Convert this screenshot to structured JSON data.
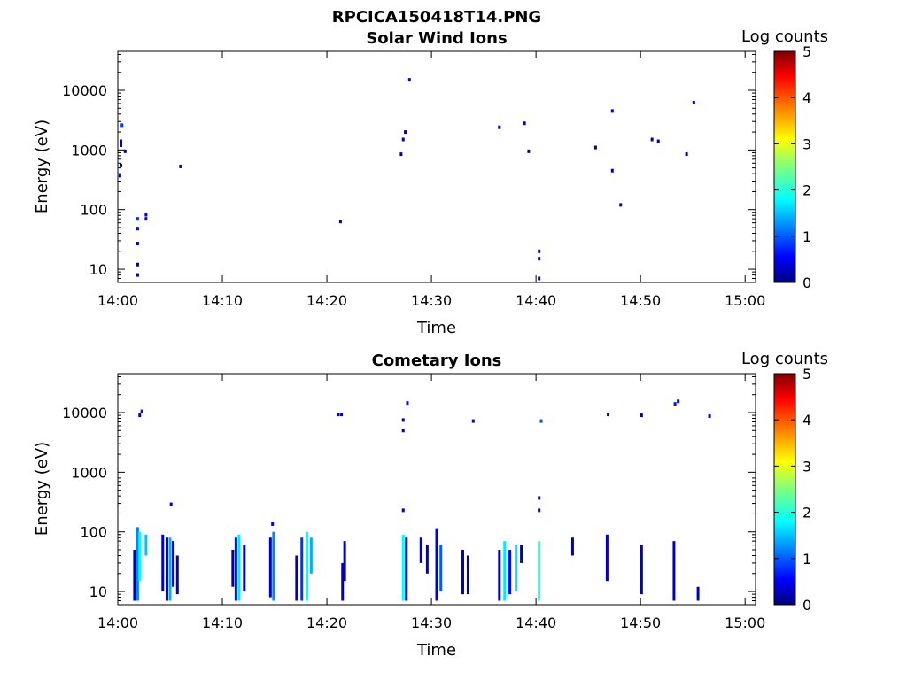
{
  "figure": {
    "title": "RPCICA150418T14.PNG"
  },
  "chart_data": [
    {
      "type": "heatmap",
      "title": "Solar Wind Ions",
      "xlabel": "Time",
      "ylabel": "Energy (eV)",
      "xticks": [
        "14:00",
        "14:10",
        "14:20",
        "14:30",
        "14:40",
        "14:50",
        "15:00"
      ],
      "xlim": [
        "14:00",
        "15:01"
      ],
      "yscale": "log",
      "ylim": [
        6,
        45000
      ],
      "yticks": [
        "10",
        "100",
        "1000",
        "10000"
      ],
      "colorbar": {
        "label": "Log counts",
        "min": 0,
        "max": 5,
        "ticks": [
          "0",
          "1",
          "2",
          "3",
          "4",
          "5"
        ],
        "colormap": "jet"
      },
      "points": [
        {
          "t": 0.4,
          "e": 2600,
          "v": 0.8
        },
        {
          "t": 0.3,
          "e": 1400,
          "v": 0.3
        },
        {
          "t": 0.3,
          "e": 1200,
          "v": 0.3
        },
        {
          "t": 0.7,
          "e": 950,
          "v": 0.2
        },
        {
          "t": 0.3,
          "e": 550,
          "v": 0.2
        },
        {
          "t": 0.2,
          "e": 370,
          "v": 0.2
        },
        {
          "t": 6.0,
          "e": 530,
          "v": 0.2
        },
        {
          "t": 1.9,
          "e": 70,
          "v": 0.8
        },
        {
          "t": 1.9,
          "e": 48,
          "v": 0.5
        },
        {
          "t": 1.9,
          "e": 27,
          "v": 0.5
        },
        {
          "t": 1.9,
          "e": 12,
          "v": 0.2
        },
        {
          "t": 1.9,
          "e": 8,
          "v": 0.2
        },
        {
          "t": 2.7,
          "e": 82,
          "v": 0.5
        },
        {
          "t": 2.7,
          "e": 70,
          "v": 0.5
        },
        {
          "t": 21.3,
          "e": 63,
          "v": 0.3
        },
        {
          "t": 27.3,
          "e": 1500,
          "v": 0.2
        },
        {
          "t": 27.5,
          "e": 2000,
          "v": 0.2
        },
        {
          "t": 27.1,
          "e": 850,
          "v": 0.2
        },
        {
          "t": 27.9,
          "e": 15000,
          "v": 0.5
        },
        {
          "t": 36.5,
          "e": 2400,
          "v": 0.2
        },
        {
          "t": 38.9,
          "e": 2800,
          "v": 0.3
        },
        {
          "t": 39.3,
          "e": 950,
          "v": 0.2
        },
        {
          "t": 40.3,
          "e": 20,
          "v": 0.2
        },
        {
          "t": 40.3,
          "e": 15,
          "v": 0.2
        },
        {
          "t": 40.3,
          "e": 7,
          "v": 0.2
        },
        {
          "t": 45.7,
          "e": 1100,
          "v": 0.2
        },
        {
          "t": 47.3,
          "e": 4500,
          "v": 0.4
        },
        {
          "t": 47.3,
          "e": 450,
          "v": 0.3
        },
        {
          "t": 48.1,
          "e": 120,
          "v": 0.4
        },
        {
          "t": 51.1,
          "e": 1500,
          "v": 0.2
        },
        {
          "t": 51.7,
          "e": 1400,
          "v": 0.2
        },
        {
          "t": 54.4,
          "e": 850,
          "v": 0.2
        },
        {
          "t": 55.1,
          "e": 6200,
          "v": 0.3
        }
      ]
    },
    {
      "type": "heatmap",
      "title": "Cometary Ions",
      "xlabel": "Time",
      "ylabel": "Energy (eV)",
      "xticks": [
        "14:00",
        "14:10",
        "14:20",
        "14:30",
        "14:40",
        "14:50",
        "15:00"
      ],
      "xlim": [
        "14:00",
        "15:01"
      ],
      "yscale": "log",
      "ylim": [
        6,
        45000
      ],
      "yticks": [
        "10",
        "100",
        "1000",
        "10000"
      ],
      "colorbar": {
        "label": "Log counts",
        "min": 0,
        "max": 5,
        "ticks": [
          "0",
          "1",
          "2",
          "3",
          "4",
          "5"
        ],
        "colormap": "jet"
      },
      "points": [
        {
          "t": 2.1,
          "e": 9000,
          "v": 0.3
        },
        {
          "t": 2.3,
          "e": 10500,
          "v": 0.6
        },
        {
          "t": 27.3,
          "e": 7500,
          "v": 0.2
        },
        {
          "t": 27.3,
          "e": 5000,
          "v": 0.2
        },
        {
          "t": 27.7,
          "e": 14500,
          "v": 0.6
        },
        {
          "t": 21.1,
          "e": 9300,
          "v": 0.3
        },
        {
          "t": 21.4,
          "e": 9300,
          "v": 0.3
        },
        {
          "t": 34.0,
          "e": 7200,
          "v": 0.4
        },
        {
          "t": 40.5,
          "e": 7200,
          "v": 0.9
        },
        {
          "t": 40.3,
          "e": 370,
          "v": 0.3
        },
        {
          "t": 40.3,
          "e": 230,
          "v": 0.3
        },
        {
          "t": 46.9,
          "e": 9300,
          "v": 0.3
        },
        {
          "t": 50.1,
          "e": 9000,
          "v": 0.3
        },
        {
          "t": 53.3,
          "e": 14000,
          "v": 0.6
        },
        {
          "t": 53.6,
          "e": 15500,
          "v": 0.6
        },
        {
          "t": 56.6,
          "e": 8700,
          "v": 0.4
        },
        {
          "t": 5.1,
          "e": 290,
          "v": 0.3
        },
        {
          "t": 27.3,
          "e": 230,
          "v": 0.3
        },
        {
          "t": 14.8,
          "e": 135,
          "v": 0.4
        }
      ],
      "columns": [
        {
          "t": 1.6,
          "e_lo": 7,
          "e_hi": 50,
          "v": 0.2
        },
        {
          "t": 1.9,
          "e_lo": 7,
          "e_hi": 120,
          "v": 1.2
        },
        {
          "t": 2.1,
          "e_lo": 15,
          "e_hi": 100,
          "v": 1.8
        },
        {
          "t": 2.7,
          "e_lo": 40,
          "e_hi": 90,
          "v": 1.5
        },
        {
          "t": 4.3,
          "e_lo": 10,
          "e_hi": 90,
          "v": 0.4
        },
        {
          "t": 4.7,
          "e_lo": 7,
          "e_hi": 80,
          "v": 0.3
        },
        {
          "t": 5.0,
          "e_lo": 7,
          "e_hi": 80,
          "v": 1.4
        },
        {
          "t": 5.3,
          "e_lo": 12,
          "e_hi": 70,
          "v": 0.3
        },
        {
          "t": 5.7,
          "e_lo": 9,
          "e_hi": 40,
          "v": 0.2
        },
        {
          "t": 11.0,
          "e_lo": 12,
          "e_hi": 50,
          "v": 0.2
        },
        {
          "t": 11.3,
          "e_lo": 7,
          "e_hi": 80,
          "v": 0.6
        },
        {
          "t": 11.6,
          "e_lo": 7,
          "e_hi": 90,
          "v": 1.7
        },
        {
          "t": 12.1,
          "e_lo": 10,
          "e_hi": 60,
          "v": 0.3
        },
        {
          "t": 14.6,
          "e_lo": 8,
          "e_hi": 80,
          "v": 0.4
        },
        {
          "t": 14.9,
          "e_lo": 7,
          "e_hi": 100,
          "v": 1.2
        },
        {
          "t": 17.1,
          "e_lo": 7,
          "e_hi": 40,
          "v": 0.3
        },
        {
          "t": 17.6,
          "e_lo": 7,
          "e_hi": 80,
          "v": 0.8
        },
        {
          "t": 18.1,
          "e_lo": 7,
          "e_hi": 100,
          "v": 1.8
        },
        {
          "t": 18.5,
          "e_lo": 20,
          "e_hi": 80,
          "v": 1.4
        },
        {
          "t": 21.5,
          "e_lo": 7,
          "e_hi": 30,
          "v": 0.2
        },
        {
          "t": 21.7,
          "e_lo": 15,
          "e_hi": 70,
          "v": 0.3
        },
        {
          "t": 27.3,
          "e_lo": 7,
          "e_hi": 90,
          "v": 1.8
        },
        {
          "t": 27.6,
          "e_lo": 7,
          "e_hi": 80,
          "v": 0.4
        },
        {
          "t": 29.0,
          "e_lo": 30,
          "e_hi": 80,
          "v": 0.3
        },
        {
          "t": 29.6,
          "e_lo": 20,
          "e_hi": 60,
          "v": 0.3
        },
        {
          "t": 30.5,
          "e_lo": 7,
          "e_hi": 115,
          "v": 0.4
        },
        {
          "t": 30.9,
          "e_lo": 10,
          "e_hi": 60,
          "v": 1.0
        },
        {
          "t": 33.0,
          "e_lo": 9,
          "e_hi": 50,
          "v": 0.3
        },
        {
          "t": 33.5,
          "e_lo": 9,
          "e_hi": 40,
          "v": 0.2
        },
        {
          "t": 36.5,
          "e_lo": 7,
          "e_hi": 50,
          "v": 0.3
        },
        {
          "t": 37.0,
          "e_lo": 7,
          "e_hi": 70,
          "v": 1.7
        },
        {
          "t": 37.5,
          "e_lo": 9,
          "e_hi": 50,
          "v": 0.6
        },
        {
          "t": 38.1,
          "e_lo": 10,
          "e_hi": 60,
          "v": 1.6
        },
        {
          "t": 38.6,
          "e_lo": 30,
          "e_hi": 60,
          "v": 0.3
        },
        {
          "t": 40.3,
          "e_lo": 7,
          "e_hi": 70,
          "v": 2.0
        },
        {
          "t": 43.5,
          "e_lo": 40,
          "e_hi": 80,
          "v": 0.3
        },
        {
          "t": 46.8,
          "e_lo": 15,
          "e_hi": 90,
          "v": 0.3
        },
        {
          "t": 50.1,
          "e_lo": 9,
          "e_hi": 60,
          "v": 0.3
        },
        {
          "t": 53.2,
          "e_lo": 7,
          "e_hi": 70,
          "v": 0.3
        },
        {
          "t": 55.5,
          "e_lo": 7,
          "e_hi": 12,
          "v": 0.3
        }
      ]
    }
  ]
}
